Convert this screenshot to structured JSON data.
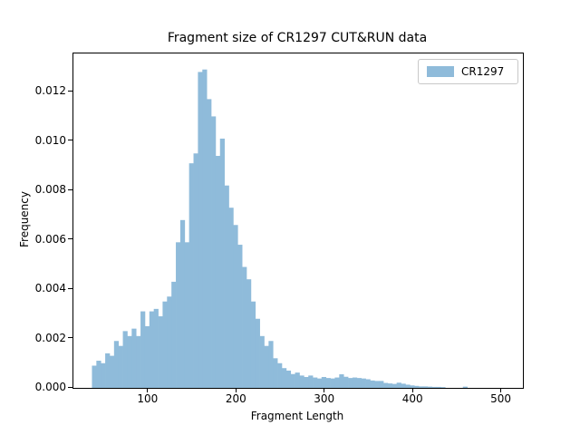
{
  "figure": {
    "title": "Fragment size of CR1297 CUT&RUN data",
    "xlabel": "Fragment Length",
    "ylabel": "Frequency",
    "legend": {
      "label": "CR1297",
      "position": "upper right"
    },
    "colors": {
      "bar": "#8fbbda",
      "legend_border": "#c8c8c8",
      "spine": "#000000",
      "text": "#000000",
      "background": "#ffffff"
    }
  },
  "chart_data": {
    "type": "bar",
    "subtype": "histogram",
    "title": "Fragment size of CR1297 CUT&RUN data",
    "xlabel": "Fragment Length",
    "ylabel": "Frequency",
    "legend_entries": [
      "CR1297"
    ],
    "legend_position": "upper right",
    "grid": false,
    "bar_color": "#8fbbda",
    "xlim": [
      15,
      524
    ],
    "ylim": [
      0,
      0.01355
    ],
    "x_ticks": [
      100,
      200,
      300,
      400,
      500
    ],
    "x_tick_labels": [
      "100",
      "200",
      "300",
      "400",
      "500"
    ],
    "y_ticks": [
      0.0,
      0.002,
      0.004,
      0.006,
      0.008,
      0.01,
      0.012
    ],
    "y_tick_labels": [
      "0.000",
      "0.002",
      "0.004",
      "0.006",
      "0.008",
      "0.010",
      "0.012"
    ],
    "bin_width": 5,
    "bin_starts": [
      36,
      41,
      46,
      51,
      56,
      61,
      66,
      71,
      76,
      81,
      86,
      91,
      96,
      101,
      106,
      111,
      116,
      121,
      126,
      131,
      136,
      141,
      146,
      151,
      156,
      161,
      166,
      171,
      176,
      181,
      186,
      191,
      196,
      201,
      206,
      211,
      216,
      221,
      226,
      231,
      236,
      241,
      246,
      251,
      256,
      261,
      266,
      271,
      276,
      281,
      286,
      291,
      296,
      301,
      306,
      311,
      316,
      321,
      326,
      331,
      336,
      341,
      346,
      351,
      356,
      361,
      366,
      371,
      376,
      381,
      386,
      391,
      396,
      401,
      406,
      411,
      416,
      421,
      426,
      431,
      436,
      441,
      446,
      451,
      456
    ],
    "values": [
      0.0009,
      0.0011,
      0.001,
      0.0014,
      0.0013,
      0.0019,
      0.0017,
      0.0023,
      0.0021,
      0.0024,
      0.0021,
      0.0031,
      0.0025,
      0.0031,
      0.0032,
      0.0029,
      0.0035,
      0.0037,
      0.0043,
      0.0059,
      0.0068,
      0.0059,
      0.0091,
      0.0095,
      0.0128,
      0.0129,
      0.0117,
      0.011,
      0.0094,
      0.0101,
      0.0082,
      0.0073,
      0.0066,
      0.0058,
      0.0049,
      0.0044,
      0.0035,
      0.0028,
      0.0021,
      0.0017,
      0.0019,
      0.0012,
      0.001,
      0.0008,
      0.0007,
      0.00056,
      0.00062,
      0.0005,
      0.00044,
      0.0005,
      0.00042,
      0.00038,
      0.00044,
      0.0004,
      0.00038,
      0.00042,
      0.00055,
      0.00045,
      0.0004,
      0.00042,
      0.0004,
      0.00038,
      0.00035,
      0.0003,
      0.00028,
      0.00028,
      0.0002,
      0.00018,
      0.00016,
      0.00021,
      0.00017,
      0.00013,
      0.0001,
      8e-05,
      6e-05,
      6e-05,
      5e-05,
      4e-05,
      4e-05,
      3e-05,
      0,
      0,
      0,
      0,
      5e-05
    ]
  }
}
